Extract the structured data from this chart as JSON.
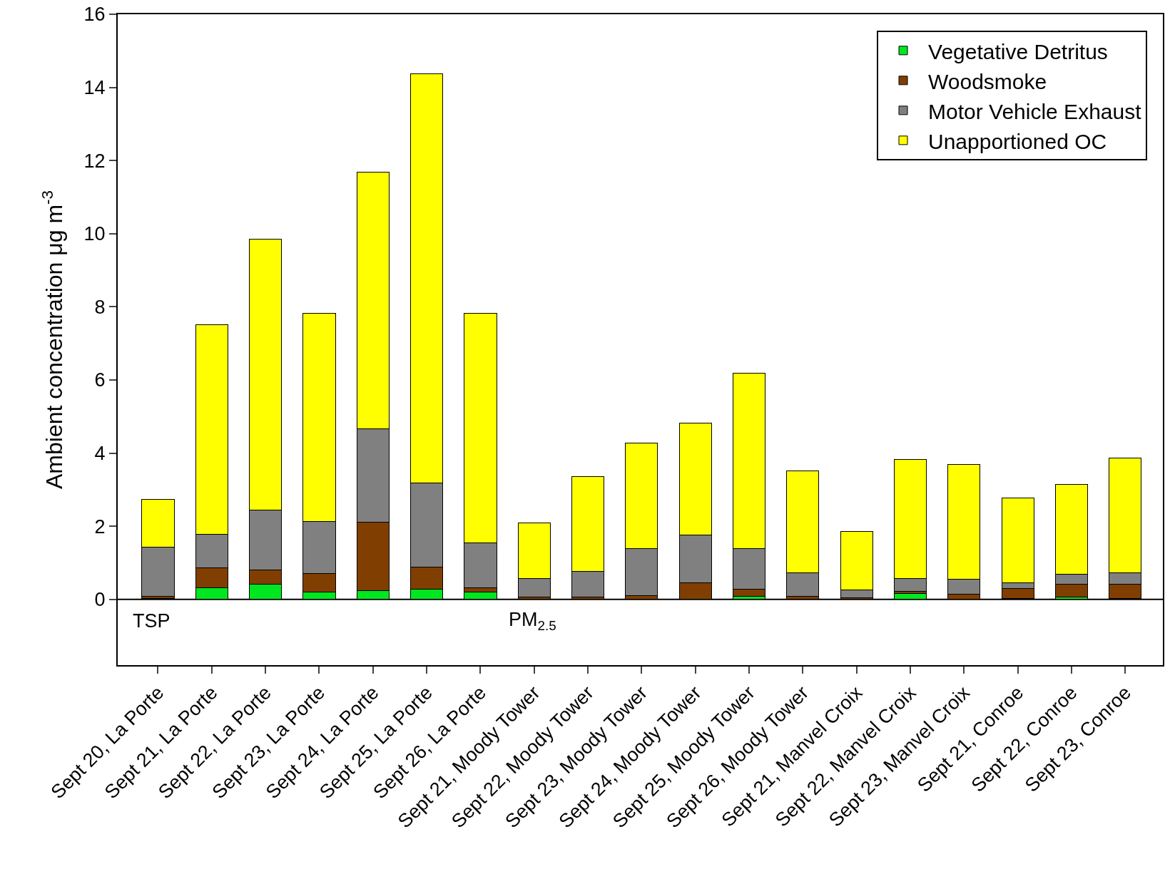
{
  "chart_data": {
    "type": "bar",
    "stacked": true,
    "ylabel": "Ambient concentration μg m$^{-3}$",
    "categories": [
      "Sept 20, La Porte",
      "Sept 21, La Porte",
      "Sept 22, La Porte",
      "Sept 23, La Porte",
      "Sept 24, La Porte",
      "Sept 25, La Porte",
      "Sept 26, La Porte",
      "Sept 21, Moody Tower",
      "Sept 22, Moody Tower",
      "Sept 23, Moody Tower",
      "Sept 24, Moody Tower",
      "Sept 25, Moody Tower",
      "Sept 26, Moody Tower",
      "Sept 21, Manvel Croix",
      "Sept 22, Manvel Croix",
      "Sept 23, Manvel Croix",
      "Sept 21, Conroe",
      "Sept 22, Conroe",
      "Sept 23, Conroe"
    ],
    "series": [
      {
        "name": "Vegetative Detritus",
        "color": "#00e620",
        "values": [
          0.02,
          0.32,
          0.41,
          0.2,
          0.24,
          0.28,
          0.2,
          0.01,
          0.01,
          0.01,
          0.01,
          0.08,
          0.01,
          0.01,
          0.15,
          null,
          0.02,
          0.07,
          0.02
        ]
      },
      {
        "name": "Woodsmoke",
        "color": "#803f00",
        "values": [
          0.06,
          0.55,
          0.4,
          0.51,
          1.87,
          0.61,
          0.12,
          0.05,
          0.06,
          0.09,
          0.44,
          0.19,
          0.08,
          0.04,
          0.06,
          0.14,
          0.28,
          0.34,
          0.39
        ]
      },
      {
        "name": "Motor Vehicle Exhaust",
        "color": "#808080",
        "values": [
          1.34,
          0.91,
          1.64,
          1.42,
          2.56,
          2.29,
          1.22,
          0.51,
          0.7,
          1.28,
          1.31,
          1.11,
          0.64,
          0.21,
          0.36,
          0.4,
          0.15,
          0.28,
          0.31
        ]
      },
      {
        "name": "Unapportioned OC",
        "color": "#ffff00",
        "values": [
          1.32,
          5.72,
          7.39,
          5.7,
          7.01,
          11.2,
          6.29,
          1.52,
          2.58,
          2.9,
          3.05,
          4.81,
          2.78,
          1.59,
          3.26,
          3.14,
          2.33,
          2.45,
          3.15
        ]
      }
    ],
    "ylim": [
      -1.8,
      16
    ],
    "yticks": [
      0,
      2,
      4,
      6,
      8,
      10,
      12,
      14,
      16
    ],
    "grid": false,
    "legend": "top right",
    "ref_lines": [
      {
        "axis": "y",
        "value": 0,
        "color": "#000000"
      }
    ],
    "annotations": [
      "TSP",
      "PM$_{2.5}$"
    ]
  }
}
